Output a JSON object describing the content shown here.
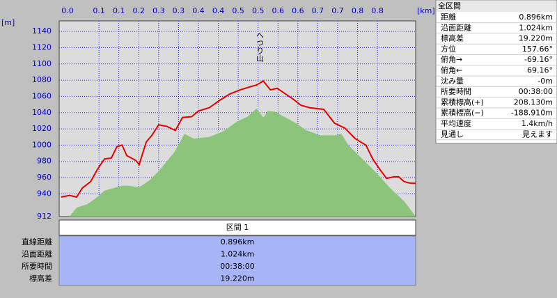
{
  "chart_data": {
    "type": "line",
    "x_unit": "[km]",
    "y_unit": "[m]",
    "annotation": "へつり山",
    "xlim": [
      0,
      0.896
    ],
    "ylim": [
      912,
      1153
    ],
    "xticks": [
      {
        "value": 0,
        "label": "0.0"
      },
      0.1,
      {
        "value": 0.15,
        "label": "0.1"
      },
      0.2,
      {
        "value": 0.25,
        "label": "0.3"
      },
      0.3,
      {
        "value": 0.35,
        "label": "0.4"
      },
      0.4,
      {
        "value": 0.45,
        "label": "0.5"
      },
      0.5,
      {
        "value": 0.55,
        "label": "0.6"
      },
      0.6,
      {
        "value": 0.65,
        "label": "0.7"
      },
      0.7,
      {
        "value": 0.75,
        "label": "0.8"
      },
      0.8
    ],
    "yticks": [
      912,
      940,
      960,
      980,
      1000,
      1020,
      1040,
      1060,
      1080,
      1100,
      1120,
      1140
    ],
    "grid": true,
    "series": [
      {
        "color": "#e80000",
        "x": [
          0.005,
          0.026,
          0.044,
          0.058,
          0.079,
          0.096,
          0.114,
          0.131,
          0.145,
          0.158,
          0.17,
          0.193,
          0.201,
          0.219,
          0.233,
          0.25,
          0.271,
          0.292,
          0.31,
          0.333,
          0.35,
          0.377,
          0.403,
          0.429,
          0.455,
          0.481,
          0.496,
          0.513,
          0.531,
          0.548,
          0.569,
          0.587,
          0.608,
          0.63,
          0.665,
          0.692,
          0.718,
          0.744,
          0.771,
          0.788,
          0.806,
          0.823,
          0.841,
          0.853,
          0.867,
          0.884,
          0.896
        ],
        "values": [
          936,
          938,
          936,
          947,
          955,
          970,
          983,
          984,
          998,
          1000,
          987,
          981,
          976,
          1004,
          1012,
          1025,
          1023,
          1018,
          1034,
          1035,
          1042,
          1046,
          1055,
          1063,
          1068,
          1072,
          1074,
          1079,
          1068,
          1070,
          1063,
          1057,
          1049,
          1046,
          1044,
          1027,
          1021,
          1008,
          1000,
          983,
          970,
          959,
          961,
          961,
          955,
          953,
          953
        ]
      },
      {
        "type": "area",
        "color": "#8cc47c",
        "x": [
          0.026,
          0.044,
          0.07,
          0.096,
          0.114,
          0.158,
          0.175,
          0.201,
          0.228,
          0.254,
          0.289,
          0.315,
          0.338,
          0.377,
          0.412,
          0.447,
          0.473,
          0.496,
          0.513,
          0.525,
          0.543,
          0.569,
          0.595,
          0.622,
          0.657,
          0.692,
          0.709,
          0.727,
          0.762,
          0.797,
          0.832,
          0.867,
          0.896
        ],
        "values": [
          912,
          923,
          927,
          936,
          944,
          950,
          950,
          948,
          957,
          970,
          991,
          1014,
          1008,
          1010,
          1017,
          1029,
          1035,
          1045,
          1034,
          1042,
          1041,
          1034,
          1027,
          1018,
          1012,
          1012,
          1014,
          1000,
          983,
          966,
          947,
          931,
          912
        ]
      }
    ]
  },
  "panel": {
    "title": "全区間",
    "rows": [
      [
        "距離",
        "0.896km"
      ],
      [
        "沿面距離",
        "1.024km"
      ],
      [
        "標高差",
        "19.220m"
      ],
      [
        "方位",
        "157.66°"
      ],
      [
        "俯角→",
        "-69.16°"
      ],
      [
        "俯角←",
        "69.16°"
      ],
      [
        "沈み量",
        "-0m"
      ],
      [
        "所要時間",
        "00:38:00"
      ],
      [
        "累積標高(+)",
        "208.130m"
      ],
      [
        "累積標高(−)",
        "-188.910m"
      ],
      [
        "平均速度",
        "1.4km/h"
      ],
      [
        "見通し",
        "見えます"
      ]
    ]
  },
  "table": {
    "header": "区間 1",
    "rows": [
      [
        "直線距離",
        "0.896km"
      ],
      [
        "沿面距離",
        "1.024km"
      ],
      [
        "所要時間",
        "00:38:00"
      ],
      [
        "標高差",
        "19.220m"
      ]
    ]
  }
}
